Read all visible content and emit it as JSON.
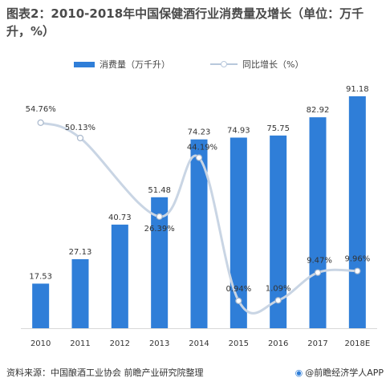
{
  "title": "图表2：2010-2018年中国保健酒行业消费量及增长（单位：万千升，%）",
  "legend": {
    "bar_label": "消费量（万千升）",
    "line_label": "同比增长（%）"
  },
  "footer": {
    "source": "资料来源：中国酿酒工业协会  前瞻产业研究院整理",
    "brand": "@前瞻经济学人APP"
  },
  "colors": {
    "bar": "#2f7ed8",
    "line": "#c9d5e4",
    "marker_fill": "#ffffff"
  },
  "chart_data": {
    "type": "bar",
    "title": "图表2：2010-2018年中国保健酒行业消费量及增长（单位：万千升，%）",
    "categories": [
      "2010",
      "2011",
      "2012",
      "2013",
      "2014",
      "2015",
      "2016",
      "2017",
      "2018E"
    ],
    "series": [
      {
        "name": "消费量（万千升）",
        "type": "bar",
        "values": [
          17.53,
          27.13,
          40.73,
          51.48,
          74.23,
          74.93,
          75.75,
          82.92,
          91.18
        ],
        "labels": [
          "17.53",
          "27.13",
          "40.73",
          "51.48",
          "74.23",
          "74.93",
          "75.75",
          "82.92",
          "91.18"
        ]
      },
      {
        "name": "同比增长（%）",
        "type": "line",
        "smooth": true,
        "values": [
          54.76,
          50.13,
          null,
          26.39,
          44.19,
          0.94,
          1.09,
          9.47,
          9.96
        ],
        "labels": [
          "54.76%",
          "50.13%",
          "",
          "26.39%",
          "44.19%",
          "0.94%",
          "1.09%",
          "9.47%",
          "9.96%"
        ]
      }
    ],
    "ylim_bar": [
      0,
      100
    ],
    "ylim_line": [
      -10,
      70
    ],
    "grid": false,
    "legend_position": "top"
  }
}
